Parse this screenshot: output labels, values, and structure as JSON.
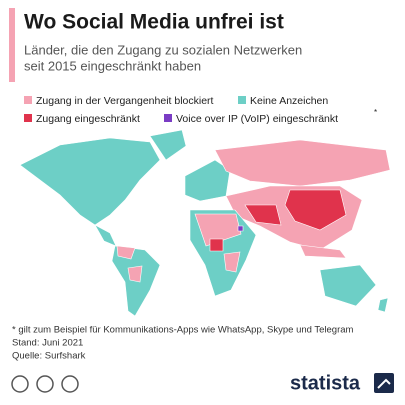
{
  "header": {
    "title": "Wo Social Media unfrei ist",
    "subtitle": [
      "Länder, die den Zugang zu sozialen Netzwerken",
      "seit 2015 eingeschränkt haben"
    ]
  },
  "legend": [
    {
      "label": "Zugang in der Vergangenheit blockiert",
      "color": "#f5a3b3"
    },
    {
      "label": "Keine Anzeichen",
      "color": "#6dcfc6"
    },
    {
      "label": "Zugang eingeschränkt",
      "color": "#e0334c"
    },
    {
      "label": "Voice over IP (VoIP) eingeschränkt",
      "color": "#7a3cc4"
    }
  ],
  "legend_footnote_mark": "*",
  "footnote": "* gilt zum Beispiel für Kommunikations-Apps wie WhatsApp, Skype und Telegram",
  "stand": "Stand: Juni 2021",
  "source": "Quelle: Surfshark",
  "brand": "statista"
}
